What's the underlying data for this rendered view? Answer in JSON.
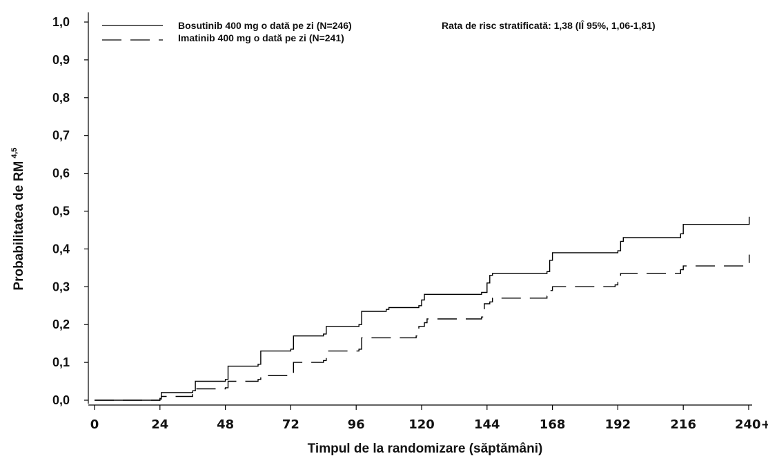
{
  "chart_data": {
    "type": "line",
    "xlabel": "Timpul de la randomizare (săptămâni)",
    "ylabel": "Probabilitatea de RM",
    "ylabel_sup": "4,5",
    "annotation": "Rata de risc stratificată: 1,38 (IÎ 95%, 1,06-1,81)",
    "xlim": [
      0,
      240
    ],
    "ylim": [
      0,
      1.0
    ],
    "x_ticks": [
      0,
      24,
      48,
      72,
      96,
      120,
      144,
      168,
      192,
      216,
      240
    ],
    "x_tick_labels": [
      "0",
      "24",
      "48",
      "72",
      "96",
      "120",
      "144",
      "168",
      "192",
      "216",
      "240+"
    ],
    "y_ticks": [
      0,
      0.1,
      0.2,
      0.3,
      0.4,
      0.5,
      0.6,
      0.7,
      0.8,
      0.9,
      1.0
    ],
    "y_tick_labels": [
      "0,0",
      "0,1",
      "0,2",
      "0,3",
      "0,4",
      "0,5",
      "0,6",
      "0,7",
      "0,8",
      "0,9",
      "1,0"
    ],
    "grid": false,
    "legend_position": "top-left",
    "series": [
      {
        "name": "Bosutinib 400 mg o dată pe zi (N=246)",
        "line_style": "solid",
        "color": "#000000",
        "x": [
          0,
          24,
          24.5,
          36,
          37,
          48,
          49,
          60,
          61,
          72,
          73,
          84,
          85,
          97,
          98,
          107,
          108,
          119,
          120,
          121,
          142,
          144,
          145,
          146,
          166,
          167,
          168,
          192,
          193,
          194,
          215,
          216,
          240,
          240.2
        ],
        "y": [
          0,
          0.005,
          0.02,
          0.025,
          0.05,
          0.055,
          0.09,
          0.095,
          0.13,
          0.135,
          0.17,
          0.175,
          0.195,
          0.2,
          0.235,
          0.24,
          0.245,
          0.25,
          0.265,
          0.28,
          0.285,
          0.31,
          0.33,
          0.335,
          0.34,
          0.37,
          0.39,
          0.395,
          0.42,
          0.43,
          0.44,
          0.465,
          0.465,
          0.485
        ]
      },
      {
        "name": "Imatinib 400 mg o dată pe zi (N=241)",
        "line_style": "dashed",
        "color": "#000000",
        "x": [
          0,
          24,
          24.5,
          36,
          37,
          48,
          49,
          60,
          61,
          71,
          73,
          84,
          85,
          97,
          98,
          118,
          119,
          121,
          122,
          142,
          143,
          145,
          146,
          166,
          167,
          168,
          191,
          192,
          193,
          215,
          216,
          240,
          240.2
        ],
        "y": [
          0,
          0.003,
          0.01,
          0.015,
          0.03,
          0.033,
          0.05,
          0.055,
          0.065,
          0.07,
          0.1,
          0.105,
          0.13,
          0.135,
          0.165,
          0.17,
          0.195,
          0.205,
          0.215,
          0.22,
          0.255,
          0.26,
          0.27,
          0.275,
          0.29,
          0.3,
          0.305,
          0.32,
          0.335,
          0.345,
          0.355,
          0.36,
          0.385
        ]
      }
    ]
  }
}
